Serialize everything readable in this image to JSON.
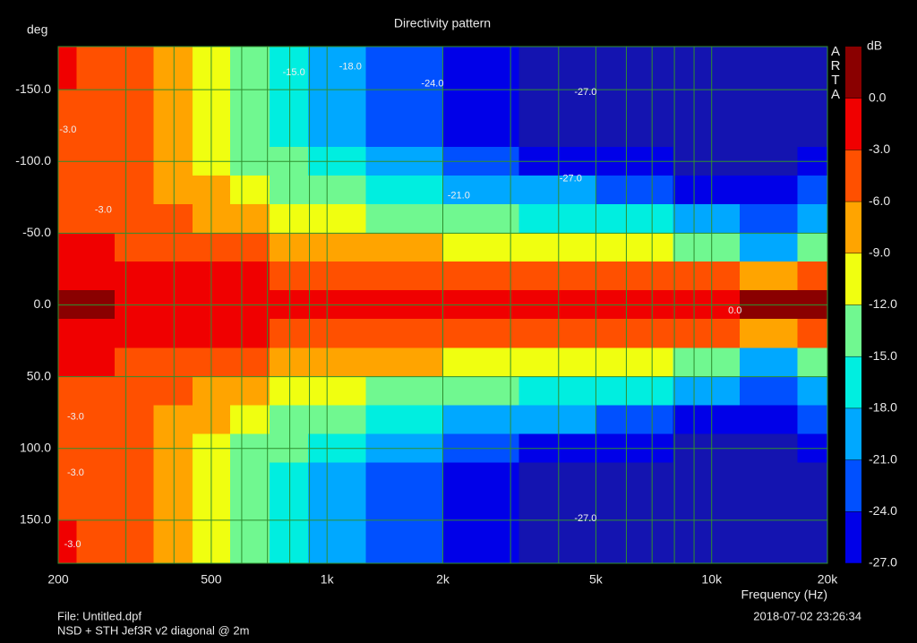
{
  "chart_data": {
    "type": "contour",
    "title": "Directivity pattern",
    "y_label": "deg",
    "x_label": "Frequency (Hz)",
    "z_label": "dB",
    "watermark": "ARTA",
    "footer_file": "File: Untitled.dpf",
    "footer_desc": "NSD + STH Jef3R v2 diagonal @ 2m",
    "footer_date": "2018-07-02   23:26:34",
    "x_log": true,
    "y_inverted": true,
    "grid": true,
    "grid_color": "#2f8f2f",
    "xlim": [
      200,
      20000
    ],
    "ylim": [
      -180,
      180
    ],
    "xticks": [
      200,
      500,
      {
        "value": 1000,
        "label": "1k"
      },
      {
        "value": 2000,
        "label": "2k"
      },
      {
        "value": 5000,
        "label": "5k"
      },
      {
        "value": 10000,
        "label": "10k"
      },
      {
        "value": 20000,
        "label": "20k"
      }
    ],
    "x_minor_grid": [
      300,
      400,
      600,
      700,
      800,
      900,
      3000,
      4000,
      6000,
      7000,
      8000,
      9000
    ],
    "yticks": [
      {
        "value": -150,
        "label": "-150.0"
      },
      {
        "value": -100,
        "label": "-100.0"
      },
      {
        "value": -50,
        "label": "-50.0"
      },
      {
        "value": 0,
        "label": "0.0"
      },
      {
        "value": 50,
        "label": "50.0"
      },
      {
        "value": 100,
        "label": "100.0"
      },
      {
        "value": 150,
        "label": "150.0"
      }
    ],
    "zlim": [
      -27,
      3
    ],
    "zticks": [
      {
        "value": 0,
        "label": "0.0"
      },
      {
        "value": -3,
        "label": "-3.0"
      },
      {
        "value": -6,
        "label": "-6.0"
      },
      {
        "value": -9,
        "label": "-9.0"
      },
      {
        "value": -12,
        "label": "-12.0"
      },
      {
        "value": -15,
        "label": "-15.0"
      },
      {
        "value": -18,
        "label": "-18.0"
      },
      {
        "value": -21,
        "label": "-21.0"
      },
      {
        "value": -24,
        "label": "-24.0"
      },
      {
        "value": -27,
        "label": "-27.0"
      }
    ],
    "colors": [
      "#0000e8",
      "#0050ff",
      "#00a8ff",
      "#00eee0",
      "#70f890",
      "#f0ff10",
      "#ffa400",
      "#ff5000",
      "#f00000",
      "#8a0000"
    ],
    "under_color": "#1414b0",
    "x": [
      200,
      250,
      315,
      400,
      500,
      630,
      800,
      1000,
      1600,
      2500,
      4000,
      6300,
      10000,
      14000,
      20000
    ],
    "y": [
      -180,
      -160,
      -140,
      -120,
      -100,
      -80,
      -60,
      -40,
      -20,
      0,
      20,
      40,
      60,
      80,
      100,
      120,
      140,
      160,
      180
    ],
    "z": [
      [
        -2.5,
        -3,
        -3.5,
        -4,
        -4.5,
        -4,
        -3.5,
        -2,
        -0.5,
        0.5,
        -0.5,
        -2,
        -3.5,
        -4,
        -4.5,
        -4,
        -3.5,
        -3,
        -2.5
      ],
      [
        -3.5,
        -4,
        -4.5,
        -5,
        -5,
        -4.5,
        -4,
        -2.5,
        -0.8,
        0.3,
        -0.8,
        -2.5,
        -4,
        -4.5,
        -5,
        -5,
        -4.5,
        -4,
        -3.5
      ],
      [
        -5.5,
        -5.5,
        -6,
        -6,
        -6,
        -5.5,
        -5,
        -3.5,
        -1.5,
        -0.3,
        -1.5,
        -3.5,
        -5,
        -5.5,
        -6,
        -6,
        -6,
        -5.5,
        -5.5
      ],
      [
        -8.5,
        -8.5,
        -8.5,
        -8.5,
        -8,
        -7.5,
        -6,
        -4.5,
        -2,
        -0.5,
        -2,
        -4.5,
        -6,
        -7.5,
        -8,
        -8.5,
        -8.5,
        -8.5,
        -8.5
      ],
      [
        -10.5,
        -10.5,
        -10.5,
        -10.5,
        -10,
        -9,
        -7,
        -5,
        -2.5,
        -0.8,
        -2.5,
        -5,
        -7,
        -9,
        -10,
        -10.5,
        -10.5,
        -10.5,
        -10.5
      ],
      [
        -13,
        -13,
        -13,
        -13,
        -12.5,
        -11,
        -9,
        -6,
        -3,
        -1,
        -3,
        -6,
        -9,
        -11,
        -12.5,
        -13,
        -13,
        -13,
        -13
      ],
      [
        -16.5,
        -16.5,
        -16.5,
        -16,
        -15,
        -13,
        -10,
        -7,
        -3.5,
        -1,
        -3.5,
        -7,
        -10,
        -13,
        -15,
        -16,
        -16.5,
        -16.5,
        -16.5
      ],
      [
        -19.5,
        -19.5,
        -19,
        -18.5,
        -17,
        -15,
        -12,
        -8,
        -3.5,
        -1,
        -3.5,
        -8,
        -12,
        -15,
        -17,
        -18.5,
        -19,
        -19.5,
        -19.5
      ],
      [
        -22.5,
        -23,
        -23,
        -22,
        -20,
        -17,
        -13,
        -9,
        -4,
        -1,
        -4,
        -9,
        -13,
        -17,
        -20,
        -22,
        -23,
        -23,
        -22.5
      ],
      [
        -25,
        -25.5,
        -26,
        -25,
        -23,
        -19,
        -15,
        -10,
        -4.5,
        -1,
        -4.5,
        -10,
        -15,
        -19,
        -23,
        -25,
        -26,
        -25.5,
        -25
      ],
      [
        -28,
        -28,
        -28,
        -27.5,
        -25,
        -21,
        -17,
        -11,
        -5,
        -1,
        -5,
        -11,
        -17,
        -21,
        -25,
        -27.5,
        -28,
        -28,
        -28
      ],
      [
        -29,
        -29,
        -29,
        -28.5,
        -26.5,
        -23,
        -18,
        -12,
        -5.5,
        -0.5,
        -5.5,
        -12,
        -18,
        -23,
        -26.5,
        -28.5,
        -29,
        -29,
        -29
      ],
      [
        -29.5,
        -29.5,
        -29.5,
        -29,
        -28,
        -25,
        -20,
        -14,
        -6,
        -0.5,
        -6,
        -14,
        -20,
        -25,
        -28,
        -29,
        -29.5,
        -29.5,
        -29.5
      ],
      [
        -29.5,
        -29.5,
        -29.5,
        -29,
        -28,
        -26,
        -24,
        -20,
        -9,
        0.5,
        -9,
        -20,
        -24,
        -26,
        -28,
        -29,
        -29.5,
        -29.5,
        -29.5
      ],
      [
        -29.5,
        -29.5,
        -29.5,
        -29,
        -27,
        -24,
        -20,
        -15,
        -6,
        0.5,
        -6,
        -15,
        -20,
        -24,
        -27,
        -29,
        -29.5,
        -29.5,
        -29.5
      ]
    ],
    "annotations": [
      {
        "text": "-3.0",
        "x": 212,
        "y": -122
      },
      {
        "text": "-3.0",
        "x": 262,
        "y": -66
      },
      {
        "text": "-15.0",
        "x": 820,
        "y": -162
      },
      {
        "text": "-18.0",
        "x": 1150,
        "y": -166
      },
      {
        "text": "-24.0",
        "x": 1880,
        "y": -154
      },
      {
        "text": "-27.0",
        "x": 4700,
        "y": -148
      },
      {
        "text": "-27.0",
        "x": 4300,
        "y": -88
      },
      {
        "text": "-21.0",
        "x": 2200,
        "y": -76
      },
      {
        "text": "0.0",
        "x": 11500,
        "y": 4
      },
      {
        "text": "-3.0",
        "x": 222,
        "y": 78
      },
      {
        "text": "-3.0",
        "x": 222,
        "y": 117
      },
      {
        "text": "-27.0",
        "x": 4700,
        "y": 149
      },
      {
        "text": "-3.0",
        "x": 218,
        "y": 167
      }
    ]
  }
}
